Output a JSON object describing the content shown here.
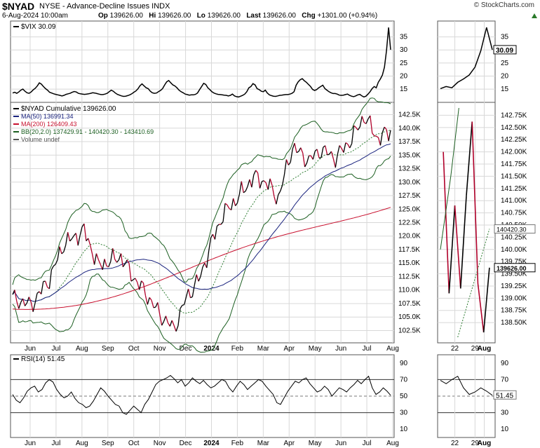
{
  "header": {
    "symbol": "$NYAD",
    "description": "NYSE - Advance-Decline Issues  INDX",
    "date": "6-Aug-2024 10:00am",
    "open_label": "Op",
    "open": "139626.00",
    "high_label": "Hi",
    "high": "139626.00",
    "low_label": "Lo",
    "low": "139626.00",
    "last_label": "Last",
    "last": "139626.00",
    "chg_label": "Chg",
    "chg": "+1301.00 (+0.94%)",
    "brand": "© StockCharts.com"
  },
  "colors": {
    "price": "#000000",
    "up_segment": "#b0002a",
    "ma50": "#1a237e",
    "ma200": "#c8102e",
    "bb": "#1b5e20",
    "bb_mid": "#2e7d32",
    "grid": "#d8d8d8"
  },
  "chart_data": [
    {
      "type": "line",
      "legend": [
        "$VIX 30.09"
      ],
      "y_ticks": [
        15,
        20,
        25,
        30,
        35
      ],
      "ylim": [
        11,
        40
      ],
      "last_value": "30.09",
      "series": [
        {
          "name": "$VIX",
          "values": [
            13.5,
            13.8,
            13.4,
            13.9,
            14.6,
            15.0,
            14.2,
            13.6,
            13.4,
            13.9,
            14.7,
            15.3,
            16.2,
            17.4,
            16.9,
            16.0,
            15.2,
            14.6,
            13.8,
            13.5,
            13.2,
            13.0,
            12.8,
            12.6,
            12.4,
            12.6,
            13.0,
            13.2,
            13.4,
            13.8,
            14.1,
            13.9,
            13.4,
            13.2,
            13.1,
            13.0,
            13.1,
            13.2,
            13.4,
            13.6,
            13.5,
            13.3,
            13.1,
            12.9,
            12.9,
            13.1,
            13.4,
            14.0,
            14.6,
            14.2,
            13.5,
            13.0,
            12.7,
            12.4,
            12.2,
            12.3,
            12.5,
            12.8,
            13.2,
            13.8,
            14.3,
            15.1,
            16.3,
            17.0,
            16.2,
            15.5,
            15.2,
            14.2,
            13.6,
            13.4,
            13.5,
            14.0,
            14.5,
            15.2,
            16.6,
            17.8,
            18.3,
            17.4,
            16.6,
            16.2,
            15.5,
            14.6,
            14.0,
            13.6,
            13.1,
            12.9,
            12.7,
            12.8,
            12.8,
            13.0,
            13.5,
            14.8,
            16.0,
            17.2,
            16.8,
            15.5,
            14.8,
            14.0,
            13.5,
            13.2,
            13.0,
            12.9,
            12.8,
            12.7,
            12.6,
            12.4,
            12.6,
            13.1,
            12.4,
            12.1,
            12.0,
            12.3,
            12.6,
            13.1,
            14.0,
            15.5,
            16.0,
            17.1,
            16.6,
            15.2,
            14.8,
            14.2,
            14.0,
            14.6,
            13.5,
            12.8,
            12.5,
            12.3,
            12.2,
            12.4,
            12.6,
            12.7,
            12.8,
            12.9,
            12.9,
            13.1,
            13.4,
            14.0,
            16.5,
            17.8,
            18.6,
            19.0,
            18.2,
            17.6,
            16.8,
            16.0,
            14.9,
            14.5,
            14.8,
            15.5,
            16.0,
            16.5,
            15.2,
            14.6,
            14.0,
            13.6,
            13.3,
            13.3,
            13.1,
            12.7,
            12.6,
            12.7,
            12.9,
            13.1,
            12.6,
            12.3,
            12.1,
            12.4,
            12.8,
            13.0,
            12.4,
            12.0,
            12.3,
            13.1,
            14.0,
            15.2,
            16.0,
            15.5,
            17.6,
            18.9,
            20.4,
            23.4,
            29.7,
            38.6,
            30.1
          ]
        }
      ]
    },
    {
      "type": "line",
      "legend": [
        "$NYAD Cumulative 139626.00",
        "MA(50) 136991.34",
        "MA(200) 126409.43",
        "BB(20,2.0) 137429.91 - 140420.30 - 143410.69",
        "Volume undef"
      ],
      "y_ticks": [
        "102.5K",
        "105.0K",
        "107.5K",
        "110.0K",
        "112.5K",
        "115.0K",
        "117.5K",
        "120.0K",
        "122.5K",
        "125.0K",
        "127.5K",
        "130.0K",
        "132.5K",
        "135.0K",
        "137.5K",
        "140.0K",
        "142.5K"
      ],
      "ylim": [
        101000,
        144000
      ],
      "x_ticks": [
        "Jun",
        "Jul",
        "Aug",
        "Sep",
        "Oct",
        "Nov",
        "Dec",
        "2024",
        "Feb",
        "Mar",
        "Apr",
        "May",
        "Jun",
        "Jul",
        "Aug"
      ],
      "anchors": {
        "x": [
          0,
          9,
          18,
          25,
          35,
          42,
          53,
          58,
          65,
          72,
          79,
          85,
          92,
          97,
          103,
          110,
          118,
          124,
          130,
          137,
          145,
          151,
          158,
          166,
          172,
          179,
          185
        ],
        "y": [
          108500,
          107200,
          112000,
          118500,
          121000,
          114500,
          116200,
          113000,
          109500,
          105500,
          102800,
          108500,
          112500,
          118500,
          124000,
          127000,
          131000,
          130000,
          127000,
          136500,
          134000,
          136000,
          134500,
          138000,
          142200,
          138000,
          139626
        ]
      },
      "series": [
        {
          "name": "MA(50)",
          "end_value": "136991.34"
        },
        {
          "name": "MA(200)",
          "end_value": "126409.43"
        },
        {
          "name": "BB(20,2.0)",
          "lower": "137429.91",
          "middle": "140420.30",
          "upper": "143410.69"
        }
      ]
    },
    {
      "type": "line",
      "legend": [
        "RSI(14) 51.45"
      ],
      "y_ticks": [
        10,
        30,
        50,
        70,
        90
      ],
      "ylim": [
        0,
        100
      ],
      "reference_lines": [
        30,
        50,
        70
      ],
      "last_value": "51.45",
      "values": [
        52,
        45,
        42,
        48,
        56,
        60,
        62,
        55,
        58,
        66,
        70,
        67,
        58,
        52,
        48,
        50,
        55,
        47,
        42,
        40,
        36,
        38,
        44,
        52,
        60,
        56,
        50,
        45,
        40,
        38,
        30,
        28,
        33,
        38,
        34,
        30,
        40,
        46,
        55,
        64,
        68,
        70,
        72,
        75,
        71,
        66,
        70,
        62,
        66,
        72,
        68,
        65,
        69,
        64,
        60,
        62,
        66,
        70,
        68,
        60,
        55,
        62,
        68,
        64,
        58,
        62,
        66,
        70,
        68,
        62,
        57,
        52,
        42,
        40,
        48,
        56,
        62,
        68,
        66,
        70,
        72,
        65,
        60,
        55,
        57,
        62,
        58,
        50,
        55,
        60,
        58,
        55,
        60,
        64,
        69,
        65,
        70,
        74,
        60,
        52,
        55,
        60,
        56,
        51
      ]
    },
    {
      "type": "line",
      "panel": "zoom",
      "x_ticks": [
        "22",
        "29",
        "Aug"
      ],
      "vix_ticks": [
        15,
        20,
        25,
        30,
        35
      ],
      "vix_last": "30.09",
      "price_ticks": [
        "138.50K",
        "138.75K",
        "139.00K",
        "139.25K",
        "139.50K",
        "139.75K",
        "140.00K",
        "140.25K",
        "140.50K",
        "140.75K",
        "141.00K",
        "141.25K",
        "141.50K",
        "141.75K",
        "142.00K",
        "142.25K",
        "142.50K",
        "142.75K"
      ],
      "price_ylim": [
        138200,
        142900
      ],
      "price_marker_mid": "140420.30",
      "price_marker_last": "139626.00",
      "rsi_ticks": [
        10,
        30,
        50,
        70,
        90
      ],
      "rsi_last": "51.45"
    }
  ]
}
